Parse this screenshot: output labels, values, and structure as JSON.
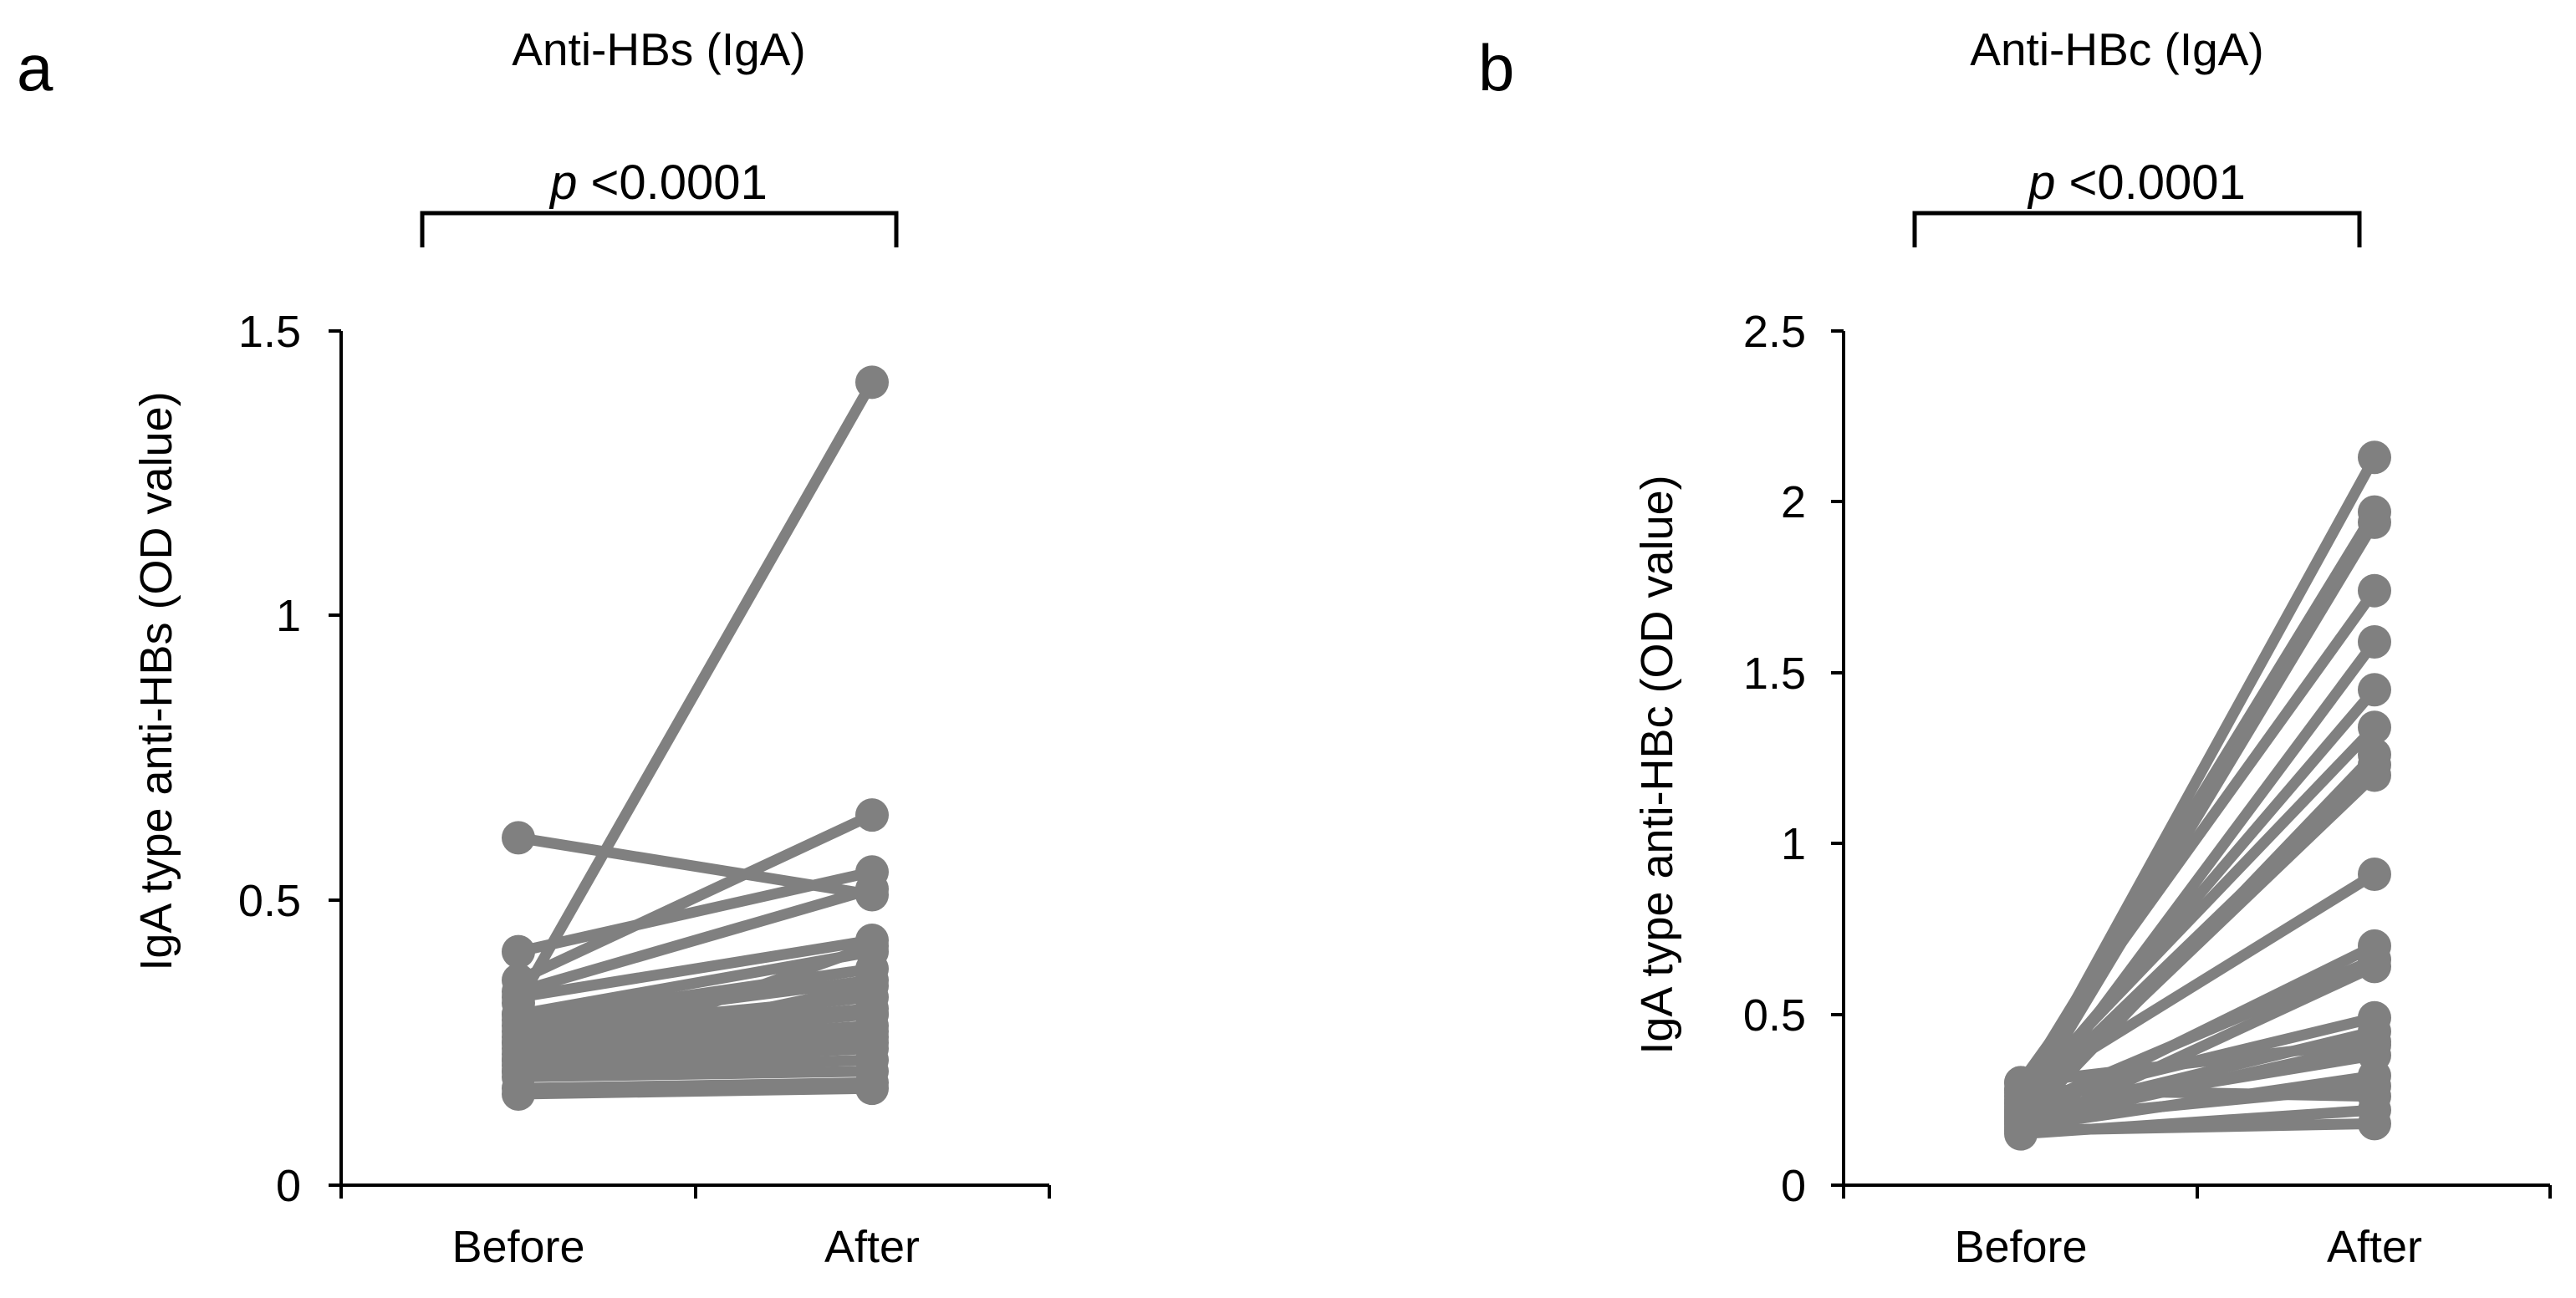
{
  "chart_data": [
    {
      "type": "line",
      "panel": "a",
      "title": "Anti-HBs (IgA)",
      "ylabel": "IgA type anti-HBs (OD value)",
      "xlabel": "",
      "categories": [
        "Before",
        "After"
      ],
      "ylim": [
        0,
        1.5
      ],
      "yticks": [
        0,
        0.5,
        1,
        1.5
      ],
      "ytick_labels": [
        "0",
        "0.5",
        "1",
        "1.5"
      ],
      "grid": false,
      "significance": {
        "p_symbol": "p",
        "p_text": " <0.0001"
      },
      "color": "#808080",
      "pairs": [
        [
          0.32,
          1.41
        ],
        [
          0.61,
          0.51
        ],
        [
          0.41,
          0.55
        ],
        [
          0.36,
          0.65
        ],
        [
          0.34,
          0.52
        ],
        [
          0.33,
          0.43
        ],
        [
          0.3,
          0.41
        ],
        [
          0.29,
          0.38
        ],
        [
          0.28,
          0.36
        ],
        [
          0.27,
          0.33
        ],
        [
          0.26,
          0.31
        ],
        [
          0.25,
          0.3
        ],
        [
          0.24,
          0.28
        ],
        [
          0.23,
          0.27
        ],
        [
          0.22,
          0.26
        ],
        [
          0.21,
          0.24
        ],
        [
          0.2,
          0.22
        ],
        [
          0.19,
          0.2
        ],
        [
          0.17,
          0.18
        ],
        [
          0.16,
          0.17
        ],
        [
          0.22,
          0.35
        ],
        [
          0.25,
          0.25
        ],
        [
          0.3,
          0.3
        ],
        [
          0.2,
          0.42
        ]
      ]
    },
    {
      "type": "line",
      "panel": "b",
      "title": "Anti-HBc (IgA)",
      "ylabel": "IgA type anti-HBc (OD value)",
      "xlabel": "",
      "categories": [
        "Before",
        "After"
      ],
      "ylim": [
        0,
        2.5
      ],
      "yticks": [
        0,
        0.5,
        1,
        1.5,
        2,
        2.5
      ],
      "ytick_labels": [
        "0",
        "0.5",
        "1",
        "1.5",
        "2",
        "2.5"
      ],
      "grid": false,
      "significance": {
        "p_symbol": "p",
        "p_text": " <0.0001"
      },
      "color": "#808080",
      "pairs": [
        [
          0.25,
          2.13
        ],
        [
          0.28,
          1.97
        ],
        [
          0.22,
          1.94
        ],
        [
          0.3,
          1.74
        ],
        [
          0.2,
          1.59
        ],
        [
          0.24,
          1.45
        ],
        [
          0.26,
          1.34
        ],
        [
          0.18,
          1.26
        ],
        [
          0.23,
          1.23
        ],
        [
          0.21,
          1.2
        ],
        [
          0.27,
          0.91
        ],
        [
          0.19,
          0.7
        ],
        [
          0.22,
          0.66
        ],
        [
          0.16,
          0.64
        ],
        [
          0.24,
          0.49
        ],
        [
          0.2,
          0.45
        ],
        [
          0.18,
          0.41
        ],
        [
          0.21,
          0.38
        ],
        [
          0.17,
          0.32
        ],
        [
          0.19,
          0.29
        ],
        [
          0.15,
          0.22
        ],
        [
          0.16,
          0.18
        ],
        [
          0.28,
          0.26
        ],
        [
          0.3,
          0.42
        ]
      ]
    }
  ]
}
